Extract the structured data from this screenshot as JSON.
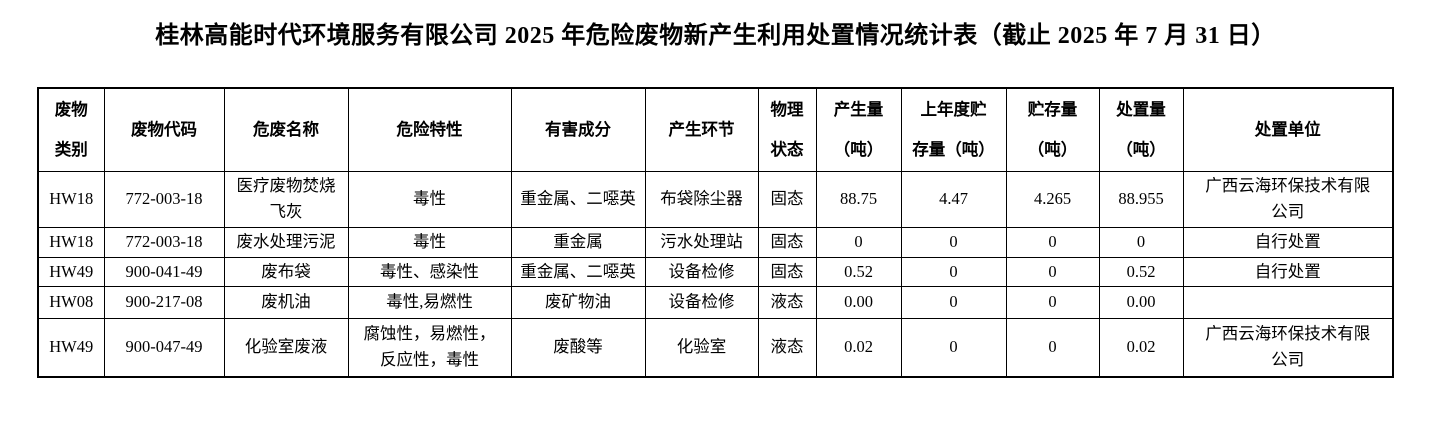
{
  "title": "桂林高能时代环境服务有限公司 2025 年危险废物新产生利用处置情况统计表（截止 2025 年 7 月 31 日）",
  "table": {
    "columns": [
      "废物\n类别",
      "废物代码",
      "危废名称",
      "危险特性",
      "有害成分",
      "产生环节",
      "物理\n状态",
      "产生量\n（吨）",
      "上年度贮\n存量（吨）",
      "贮存量\n（吨）",
      "处置量\n（吨）",
      "处置单位"
    ],
    "rows": [
      {
        "cells": [
          "HW18",
          "772-003-18",
          "医疗废物焚烧\n飞灰",
          "毒性",
          "重金属、二噁英",
          "布袋除尘器",
          "固态",
          "88.75",
          "4.47",
          "4.265",
          "88.955",
          "广西云海环保技术有限\n公司"
        ]
      },
      {
        "cells": [
          "HW18",
          "772-003-18",
          "废水处理污泥",
          "毒性",
          "重金属",
          "污水处理站",
          "固态",
          "0",
          "0",
          "0",
          "0",
          "自行处置"
        ]
      },
      {
        "cells": [
          "HW49",
          "900-041-49",
          "废布袋",
          "毒性、感染性",
          "重金属、二噁英",
          "设备检修",
          "固态",
          "0.52",
          "0",
          "0",
          "0.52",
          "自行处置"
        ]
      },
      {
        "cells": [
          "HW08",
          "900-217-08",
          "废机油",
          "毒性,易燃性",
          "废矿物油",
          "设备检修",
          "液态",
          "0.00",
          "0",
          "0",
          "0.00",
          ""
        ]
      },
      {
        "cells": [
          "HW49",
          "900-047-49",
          "化验室废液",
          "腐蚀性，易燃性，\n反应性，毒性",
          "废酸等",
          "化验室",
          "液态",
          "0.02",
          "0",
          "0",
          "0.02",
          "广西云海环保技术有限\n公司"
        ]
      }
    ]
  }
}
